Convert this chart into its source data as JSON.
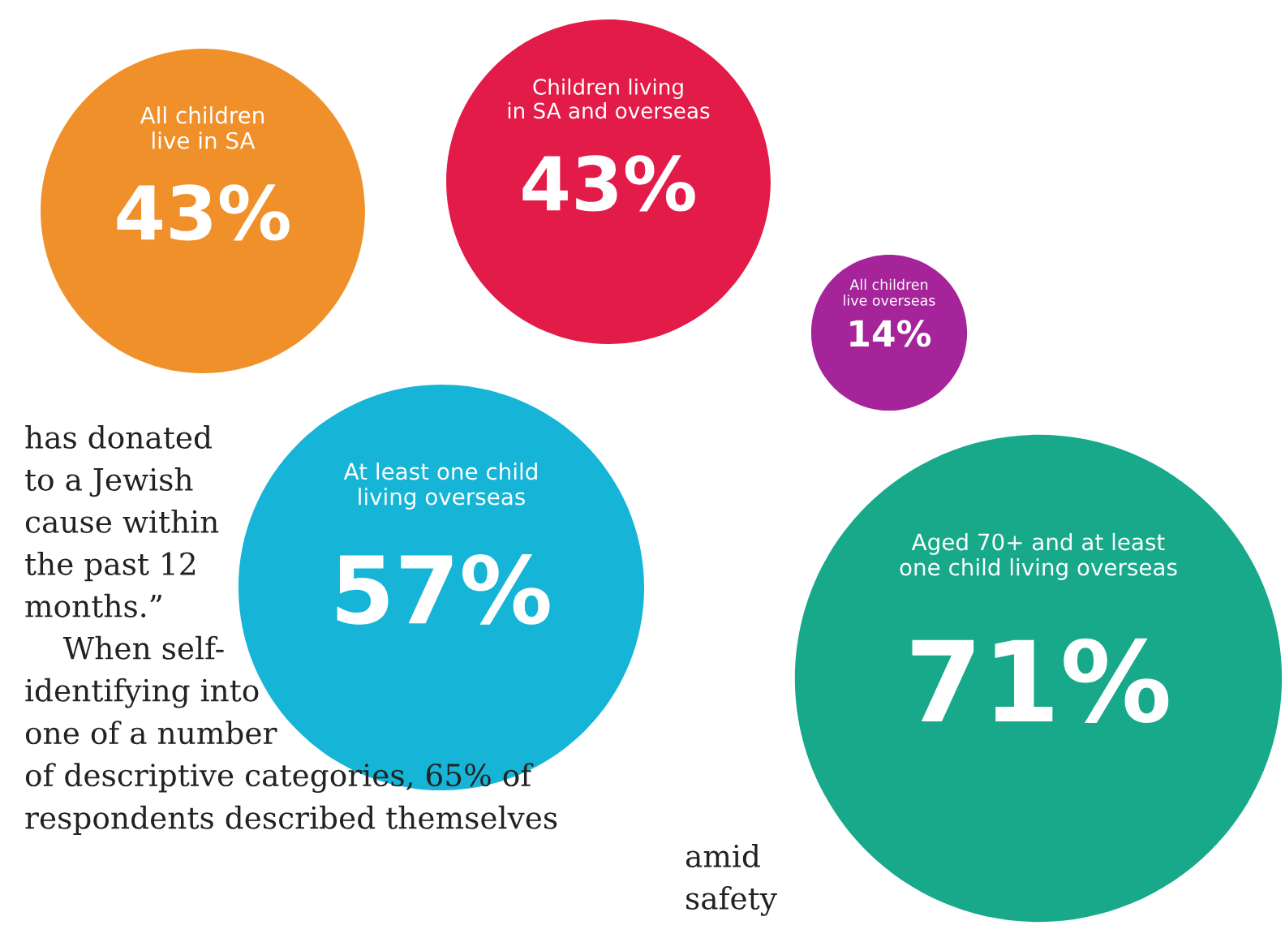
{
  "chart_data": {
    "type": "other",
    "categories": [
      "All children live in SA",
      "Children living in SA and overseas",
      "All children live overseas",
      "At least one child living overseas",
      "Aged 70+ and at least one child living overseas"
    ],
    "values": [
      43,
      43,
      14,
      57,
      71
    ],
    "value_labels": [
      "43%",
      "43%",
      "14%",
      "57%",
      "71%"
    ],
    "colors": [
      "#f0902a",
      "#e31b48",
      "#a5249a",
      "#16b4d6",
      "#17a98a"
    ],
    "annotations": [
      "has donated\nto a Jewish\ncause within\nthe past 12\nmonths.”\n    When self-\nidentifying into\none of a number\nof descriptive categories, 65% of\nrespondents described themselves",
      "amid\nsafety"
    ]
  }
}
